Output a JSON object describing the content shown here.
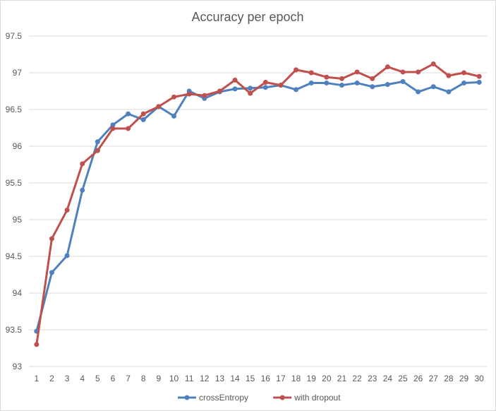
{
  "chart_data": {
    "type": "line",
    "title": "Accuracy per epoch",
    "xlabel": "",
    "ylabel": "",
    "x": [
      1,
      2,
      3,
      4,
      5,
      6,
      7,
      8,
      9,
      10,
      11,
      12,
      13,
      14,
      15,
      16,
      17,
      18,
      19,
      20,
      21,
      22,
      23,
      24,
      25,
      26,
      27,
      28,
      29,
      30
    ],
    "ylim": [
      93,
      97.5
    ],
    "yticks": [
      "93",
      "93.5",
      "94",
      "94.5",
      "95",
      "95.5",
      "96",
      "96.5",
      "97",
      "97.5"
    ],
    "grid": true,
    "legend_position": "bottom",
    "series": [
      {
        "name": "crossEntropy",
        "color": "#4f81bd",
        "values": [
          93.48,
          94.28,
          94.51,
          95.4,
          96.06,
          96.29,
          96.44,
          96.36,
          96.54,
          96.41,
          96.75,
          96.65,
          96.74,
          96.78,
          96.79,
          96.8,
          96.83,
          96.77,
          96.86,
          96.86,
          96.83,
          96.86,
          96.81,
          96.84,
          96.88,
          96.74,
          96.81,
          96.74,
          96.86,
          96.87
        ]
      },
      {
        "name": "with dropout",
        "color": "#c0504d",
        "values": [
          93.3,
          94.74,
          95.13,
          95.76,
          95.94,
          96.24,
          96.24,
          96.44,
          96.54,
          96.67,
          96.71,
          96.69,
          96.75,
          96.9,
          96.72,
          96.87,
          96.83,
          97.04,
          97.0,
          96.94,
          96.92,
          97.01,
          96.92,
          97.08,
          97.01,
          97.01,
          97.12,
          96.96,
          97.0,
          96.95
        ]
      }
    ]
  }
}
